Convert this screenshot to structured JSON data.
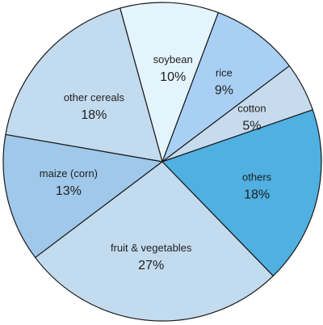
{
  "chart_data": {
    "type": "pie",
    "title": "",
    "start_angle_deg": -19,
    "direction": "counterclockwise",
    "slices": [
      {
        "name": "cotton",
        "value_label": "5%",
        "value": 5,
        "color": "#c6dcee"
      },
      {
        "name": "rice",
        "value_label": "9%",
        "value": 9,
        "color": "#a9d0f4"
      },
      {
        "name": "soybean",
        "value_label": "10%",
        "value": 10,
        "color": "#e3f4fd"
      },
      {
        "name": "other cereals",
        "value_label": "18%",
        "value": 18,
        "color": "#c3dbef"
      },
      {
        "name": "maize (corn)",
        "value_label": "13%",
        "value": 13,
        "color": "#9fc8ea"
      },
      {
        "name": "fruit & vegetables",
        "value_label": "27%",
        "value": 27,
        "color": "#c3dbef"
      },
      {
        "name": "others",
        "value_label": "18%",
        "value": 18,
        "color": "#4fb0e1"
      }
    ]
  }
}
